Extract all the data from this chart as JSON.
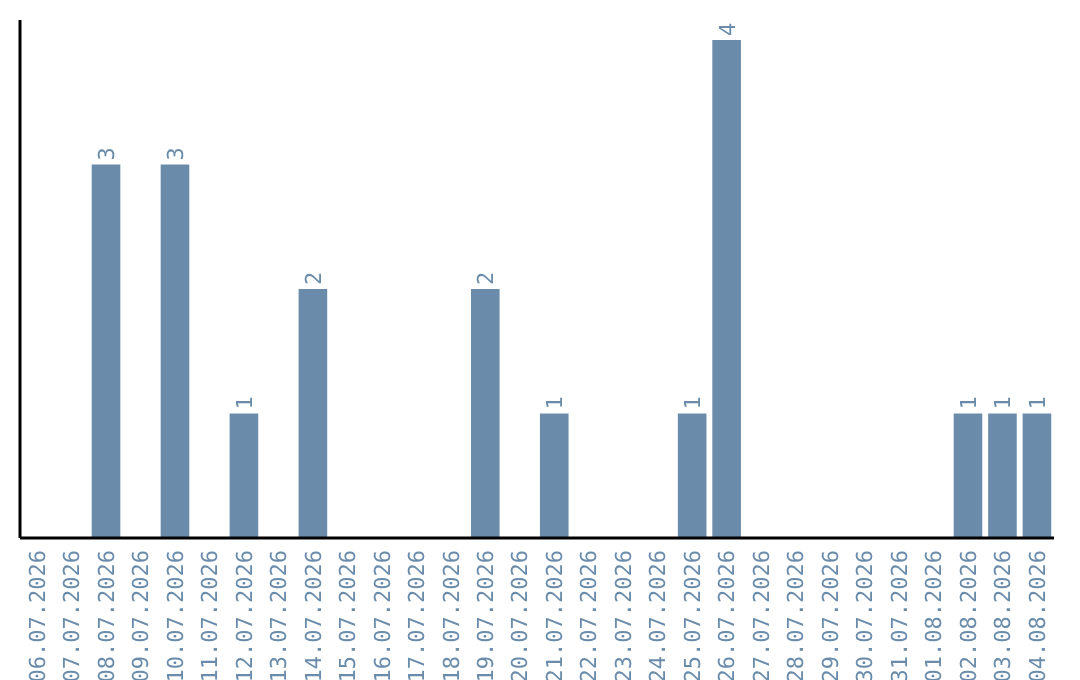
{
  "chart_data": {
    "type": "bar",
    "categories": [
      "06.07.2026",
      "07.07.2026",
      "08.07.2026",
      "09.07.2026",
      "10.07.2026",
      "11.07.2026",
      "12.07.2026",
      "13.07.2026",
      "14.07.2026",
      "15.07.2026",
      "16.07.2026",
      "17.07.2026",
      "18.07.2026",
      "19.07.2026",
      "20.07.2026",
      "21.07.2026",
      "22.07.2026",
      "23.07.2026",
      "24.07.2026",
      "25.07.2026",
      "26.07.2026",
      "27.07.2026",
      "28.07.2026",
      "29.07.2026",
      "30.07.2026",
      "31.07.2026",
      "01.08.2026",
      "02.08.2026",
      "03.08.2026",
      "04.08.2026"
    ],
    "values": [
      0,
      0,
      3,
      0,
      3,
      0,
      1,
      0,
      2,
      0,
      0,
      0,
      0,
      2,
      0,
      1,
      0,
      0,
      0,
      1,
      4,
      0,
      0,
      0,
      0,
      0,
      0,
      1,
      1,
      1
    ],
    "value_labels": [
      null,
      null,
      "3",
      null,
      "3",
      null,
      "1",
      null,
      "2",
      null,
      null,
      null,
      null,
      "2",
      null,
      "1",
      null,
      null,
      null,
      "1",
      "4",
      null,
      null,
      null,
      null,
      null,
      null,
      "1",
      "1",
      "1"
    ],
    "color": "#6a8caa"
  }
}
